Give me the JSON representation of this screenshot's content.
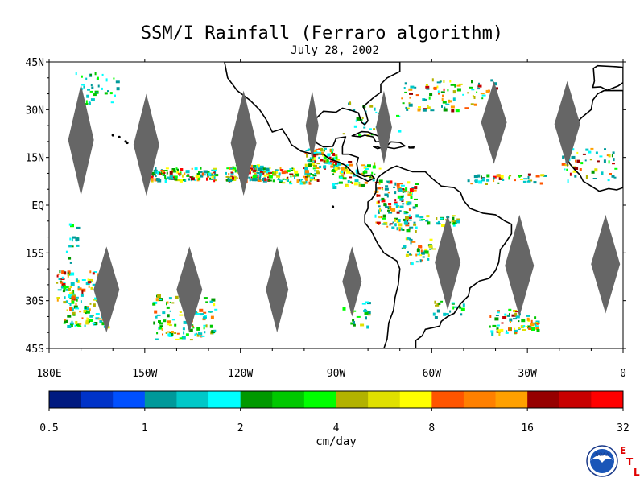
{
  "title": "SSM/I Rainfall (Ferraro algorithm)",
  "date": "July 28, 2002",
  "map": {
    "lon_range": [
      -180,
      0
    ],
    "lat_range": [
      -45,
      45
    ],
    "lat_ticks": [
      {
        "value": 45,
        "label": "45N"
      },
      {
        "value": 30,
        "label": "30N"
      },
      {
        "value": 15,
        "label": "15N"
      },
      {
        "value": 0,
        "label": "EQ"
      },
      {
        "value": -15,
        "label": "15S"
      },
      {
        "value": -30,
        "label": "30S"
      },
      {
        "value": -45,
        "label": "45S"
      }
    ],
    "lon_ticks": [
      {
        "value": -180,
        "label": "180E"
      },
      {
        "value": -150,
        "label": "150W"
      },
      {
        "value": -120,
        "label": "120W"
      },
      {
        "value": -90,
        "label": "90W"
      },
      {
        "value": -60,
        "label": "60W"
      },
      {
        "value": -30,
        "label": "30W"
      },
      {
        "value": 0,
        "label": "0"
      }
    ],
    "swath_gap_color": "#666666",
    "coast_color": "#000000"
  },
  "colorbar": {
    "unit_label": "cm/day",
    "colors": [
      "#001a80",
      "#0033c8",
      "#0050ff",
      "#00999a",
      "#00c8c8",
      "#00ffff",
      "#009900",
      "#00c800",
      "#00ff00",
      "#b2b200",
      "#e0e000",
      "#ffff00",
      "#ff5500",
      "#ff8000",
      "#ffa000",
      "#960000",
      "#c80000",
      "#ff0000"
    ],
    "tick_labels": [
      "0.5",
      "1",
      "2",
      "4",
      "8",
      "16",
      "32"
    ]
  },
  "logo": {
    "noaa_text": "NOAA",
    "etl_letters": [
      "E",
      "T",
      "L"
    ],
    "brand_color": "#e00000"
  }
}
